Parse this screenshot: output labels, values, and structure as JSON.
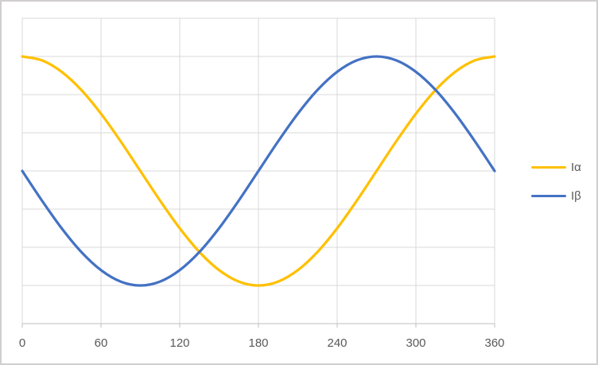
{
  "chart_data": {
    "type": "line",
    "title": "",
    "xlabel": "",
    "ylabel": "",
    "xlim": [
      0,
      360
    ],
    "ylim": [
      -2,
      2
    ],
    "x_ticks": [
      0,
      60,
      120,
      180,
      240,
      300,
      360
    ],
    "x_tick_labels": [
      "0",
      "60",
      "120",
      "180",
      "240",
      "300",
      "360"
    ],
    "y_gridline_step": 0.5,
    "grid": true,
    "legend_position": "right",
    "x": [
      0,
      15,
      30,
      45,
      60,
      75,
      90,
      105,
      120,
      135,
      150,
      165,
      180,
      195,
      210,
      225,
      240,
      255,
      270,
      285,
      300,
      315,
      330,
      345,
      360
    ],
    "series": [
      {
        "name": "Iα",
        "key": "ialpha",
        "color": "#FFC000",
        "values": [
          1.5,
          1.449,
          1.299,
          1.061,
          0.75,
          0.388,
          0,
          -0.388,
          -0.75,
          -1.061,
          -1.299,
          -1.449,
          -1.5,
          -1.449,
          -1.299,
          -1.061,
          -0.75,
          -0.388,
          0,
          0.388,
          0.75,
          1.061,
          1.299,
          1.449,
          1.5
        ]
      },
      {
        "name": "Iβ",
        "key": "ibeta",
        "color": "#4472C4",
        "values": [
          0,
          -0.388,
          -0.75,
          -1.061,
          -1.299,
          -1.449,
          -1.5,
          -1.449,
          -1.299,
          -1.061,
          -0.75,
          -0.388,
          0,
          0.388,
          0.75,
          1.061,
          1.299,
          1.449,
          1.5,
          1.449,
          1.299,
          1.061,
          0.75,
          0.388,
          0
        ]
      }
    ],
    "colors": {
      "background": "#FFFFFF",
      "frame_border": "#D0CECE",
      "gridline": "#D9D9D9",
      "plot_border": "#D9D9D9",
      "axis_line": "#BFBFBF",
      "tick_label": "#595959",
      "legend_text": "#595959"
    }
  }
}
